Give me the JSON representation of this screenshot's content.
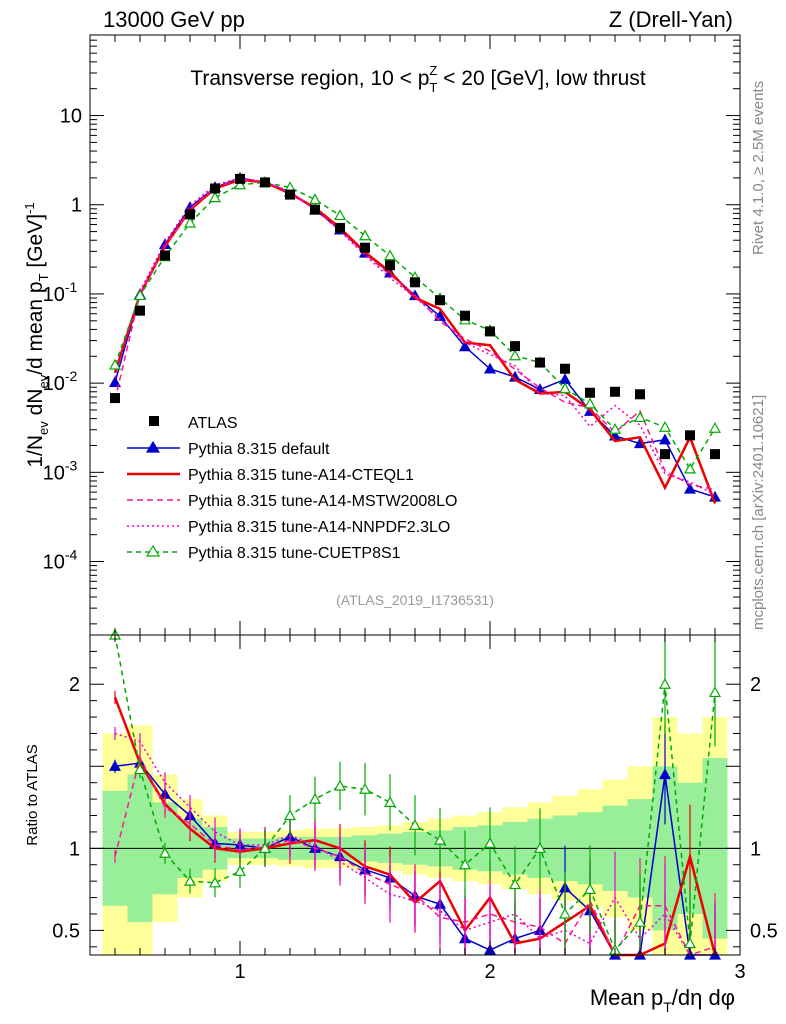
{
  "header": {
    "left": "13000 GeV pp",
    "right": "Z (Drell-Yan)"
  },
  "side_labels": {
    "rivet": "Rivet 4.1.0, ≥ 2.5M events",
    "mcplots": "mcplots.cern.ch [arXiv:2401.10621]"
  },
  "chart_data": {
    "type": "scatter",
    "title": "Transverse region, 10 < p_T^Z < 20 [GeV], low thrust",
    "title_parts": {
      "pre": "Transverse region, 10 < p",
      "sub": "T",
      "sup": "Z",
      "post": " < 20 [GeV], low thrust"
    },
    "analysis_tag": "(ATLAS_2019_I1736531)",
    "xlabel": "Mean p_T/dη dφ",
    "xlabel_parts": {
      "pre": "Mean p",
      "sub": "T",
      "post": "/dη dφ"
    },
    "ylabel": "1/N_ev dN_ev/d mean p_T [GeV]^-1",
    "ylabel_parts": {
      "a": "1/N",
      "a_sub": "ev",
      "b": " dN",
      "b_sub": "ev",
      "c": "/d mean p",
      "c_sub": "T",
      "d": " [GeV]",
      "d_sup": "-1"
    },
    "ratio_ylabel": "Ratio to ATLAS",
    "xlim": [
      0.4,
      3.0
    ],
    "ylim_log": [
      1.5e-05,
      80
    ],
    "ratio_ylim": [
      0.35,
      2.3
    ],
    "x_ticks": [
      1,
      2,
      3
    ],
    "x_tick_labels": [
      "1",
      "2",
      "3"
    ],
    "y_ticks": [
      0.0001,
      0.001,
      0.01,
      0.1,
      1,
      10
    ],
    "y_tick_labels": [
      [
        "10",
        "-4"
      ],
      [
        "10",
        "-3"
      ],
      [
        "10",
        "-2"
      ],
      [
        "10",
        "-1"
      ],
      [
        "1",
        ""
      ],
      [
        "10",
        ""
      ]
    ],
    "ratio_ticks": [
      0.5,
      1,
      2
    ],
    "ratio_tick_labels": [
      "0.5",
      "1",
      "2"
    ],
    "legend_position": "center-left",
    "x": [
      0.5,
      0.6,
      0.7,
      0.8,
      0.9,
      1.0,
      1.1,
      1.2,
      1.3,
      1.4,
      1.5,
      1.6,
      1.7,
      1.8,
      1.9,
      2.0,
      2.1,
      2.2,
      2.3,
      2.4,
      2.5,
      2.6,
      2.7,
      2.8,
      2.9
    ],
    "data": {
      "name": "ATLAS",
      "values": [
        0.0068,
        0.065,
        0.27,
        0.78,
        1.52,
        1.95,
        1.78,
        1.3,
        0.88,
        0.55,
        0.33,
        0.21,
        0.135,
        0.085,
        0.057,
        0.038,
        0.026,
        0.017,
        0.0145,
        0.0078,
        0.008,
        0.0075,
        0.0016,
        0.0026,
        0.0016
      ]
    },
    "band_inner": [
      0.35,
      0.45,
      0.28,
      0.18,
      0.13,
      0.06,
      0.06,
      0.07,
      0.07,
      0.07,
      0.08,
      0.09,
      0.1,
      0.11,
      0.13,
      0.14,
      0.16,
      0.18,
      0.2,
      0.22,
      0.26,
      0.3,
      0.5,
      0.4,
      0.55
    ],
    "band_outer": [
      0.7,
      0.75,
      0.45,
      0.3,
      0.2,
      0.1,
      0.1,
      0.11,
      0.12,
      0.12,
      0.13,
      0.14,
      0.16,
      0.18,
      0.2,
      0.22,
      0.25,
      0.28,
      0.32,
      0.36,
      0.42,
      0.5,
      0.8,
      0.7,
      0.8
    ],
    "series": [
      {
        "name": "Pythia 8.315 default",
        "color": "#0000cc",
        "dash": "",
        "marker": "triangle-filled",
        "ratio": [
          1.5,
          1.52,
          1.33,
          1.2,
          1.03,
          1.02,
          1.0,
          1.07,
          1.0,
          0.95,
          0.87,
          0.82,
          0.71,
          0.66,
          0.45,
          0.38,
          0.45,
          0.5,
          0.76,
          0.62,
          0.32,
          0.28,
          1.45,
          0.25,
          0.33
        ]
      },
      {
        "name": "Pythia 8.315 tune-A14-CTEQL1",
        "color": "#ee0000",
        "dash": "",
        "marker": "none",
        "ratio": [
          1.92,
          1.52,
          1.27,
          1.12,
          1.0,
          0.98,
          1.0,
          1.03,
          1.05,
          1.0,
          0.89,
          0.84,
          0.67,
          0.8,
          0.5,
          0.7,
          0.42,
          0.45,
          0.55,
          0.65,
          0.28,
          0.33,
          0.42,
          0.95,
          0.28
        ]
      },
      {
        "name": "Pythia 8.315 tune-A14-MSTW2008LO",
        "color": "#ff1493",
        "dash": "6,4",
        "marker": "none",
        "ratio": [
          0.95,
          1.55,
          1.25,
          1.15,
          1.02,
          0.99,
          1.01,
          1.05,
          1.0,
          0.95,
          0.85,
          0.78,
          0.72,
          0.58,
          0.55,
          0.6,
          0.55,
          0.52,
          0.42,
          0.68,
          0.35,
          0.65,
          0.65,
          0.28,
          0.4
        ]
      },
      {
        "name": "Pythia 8.315 tune-A14-NNPDF2.3LO",
        "color": "#ee00cc",
        "dash": "2,3",
        "marker": "none",
        "ratio": [
          1.7,
          1.65,
          1.4,
          1.25,
          1.1,
          1.02,
          1.02,
          1.08,
          1.02,
          0.92,
          0.82,
          0.72,
          0.68,
          0.62,
          0.5,
          0.55,
          0.6,
          0.45,
          0.5,
          0.42,
          0.7,
          0.45,
          0.6,
          0.3,
          0.35
        ]
      },
      {
        "name": "Pythia 8.315 tune-CUETP8S1",
        "color": "#00aa00",
        "dash": "5,4",
        "marker": "triangle-open",
        "ratio": [
          2.35,
          1.48,
          0.97,
          0.8,
          0.79,
          0.86,
          1.0,
          1.2,
          1.3,
          1.38,
          1.36,
          1.28,
          1.14,
          1.05,
          0.9,
          1.03,
          0.78,
          1.0,
          0.6,
          0.75,
          0.38,
          0.55,
          2.0,
          0.42,
          1.95
        ]
      }
    ]
  }
}
